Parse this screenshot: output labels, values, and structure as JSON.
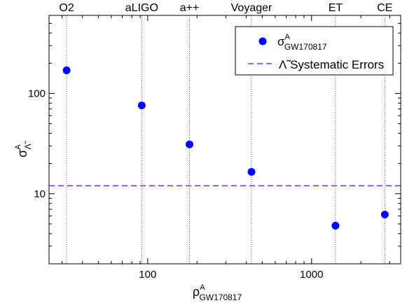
{
  "chart_data": {
    "type": "scatter",
    "xscale": "log",
    "yscale": "log",
    "xlim": [
      25,
      3500
    ],
    "ylim": [
      2,
      600
    ],
    "grid": false,
    "xlabel": {
      "main": "ρ",
      "sup": "A",
      "sub": "GW170817"
    },
    "ylabel": {
      "main": "σ",
      "sup": "A",
      "sub": "Λ̃"
    },
    "x_ticks": [
      {
        "value": 100,
        "label": "100"
      },
      {
        "value": 1000,
        "label": "1000"
      }
    ],
    "y_ticks": [
      {
        "value": 10,
        "label": "10"
      },
      {
        "value": 100,
        "label": "100"
      }
    ],
    "detectors": [
      {
        "name": "O2",
        "x": 32
      },
      {
        "name": "aLIGO",
        "x": 92
      },
      {
        "name": "a++",
        "x": 180
      },
      {
        "name": "Voyager",
        "x": 430
      },
      {
        "name": "ET",
        "x": 1400
      },
      {
        "name": "CE",
        "x": 2800
      }
    ],
    "series": [
      {
        "name": {
          "main": "σ",
          "sup": "A",
          "sub": "GW170817"
        },
        "color": "#0000ff",
        "points": [
          {
            "x": 32,
            "y": 170
          },
          {
            "x": 92,
            "y": 76
          },
          {
            "x": 180,
            "y": 31
          },
          {
            "x": 430,
            "y": 16.5
          },
          {
            "x": 1400,
            "y": 4.8
          },
          {
            "x": 2800,
            "y": 6.2
          }
        ]
      }
    ],
    "reference_line": {
      "name": "Λ̃ Systematic Errors",
      "y": 12,
      "color": "#8a2be2"
    },
    "legend": "top-right"
  }
}
